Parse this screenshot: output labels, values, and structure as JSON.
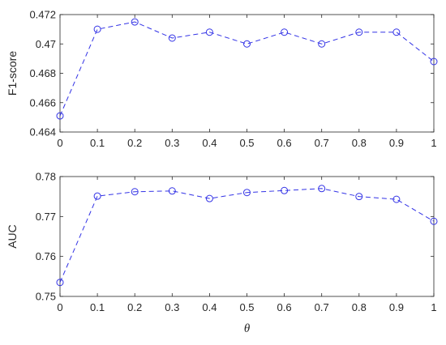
{
  "chart_data": [
    {
      "type": "line",
      "ylabel": "F1-score",
      "xlabel": "",
      "xlim": [
        0,
        1
      ],
      "ylim": [
        0.464,
        0.472
      ],
      "xticks": [
        "0",
        "0.1",
        "0.2",
        "0.3",
        "0.4",
        "0.5",
        "0.6",
        "0.7",
        "0.8",
        "0.9",
        "1"
      ],
      "yticks": [
        "0.464",
        "0.466",
        "0.468",
        "0.47",
        "0.472"
      ],
      "grid": false,
      "line_style": "dashed",
      "marker": "circle",
      "color": "#3333e6",
      "series": [
        {
          "x": [
            0,
            0.1,
            0.2,
            0.3,
            0.4,
            0.5,
            0.6,
            0.7,
            0.8,
            0.9,
            1
          ],
          "values": [
            0.4651,
            0.471,
            0.4715,
            0.4704,
            0.4708,
            0.47,
            0.4708,
            0.47,
            0.4708,
            0.4708,
            0.4688
          ]
        }
      ]
    },
    {
      "type": "line",
      "ylabel": "AUC",
      "xlabel": "θ",
      "xlim": [
        0,
        1
      ],
      "ylim": [
        0.75,
        0.78
      ],
      "xticks": [
        "0",
        "0.1",
        "0.2",
        "0.3",
        "0.4",
        "0.5",
        "0.6",
        "0.7",
        "0.8",
        "0.9",
        "1"
      ],
      "yticks": [
        "0.75",
        "0.76",
        "0.77",
        "0.78"
      ],
      "grid": false,
      "line_style": "dashed",
      "marker": "circle",
      "color": "#3333e6",
      "series": [
        {
          "x": [
            0,
            0.1,
            0.2,
            0.3,
            0.4,
            0.5,
            0.6,
            0.7,
            0.8,
            0.9,
            1
          ],
          "values": [
            0.7535,
            0.7751,
            0.7762,
            0.7764,
            0.7745,
            0.776,
            0.7765,
            0.777,
            0.775,
            0.7743,
            0.7688
          ]
        }
      ]
    }
  ]
}
